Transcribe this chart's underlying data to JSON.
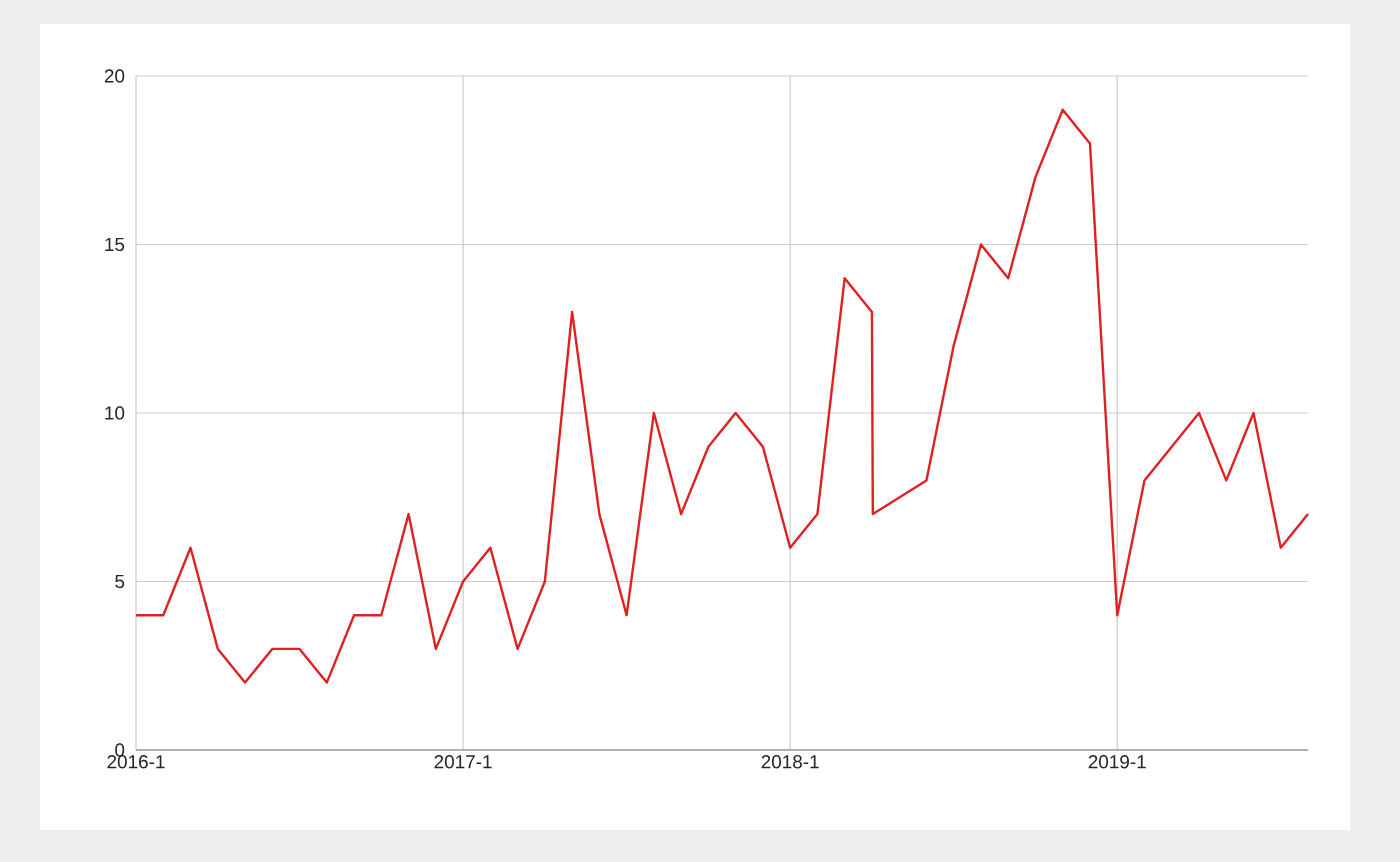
{
  "chart_data": {
    "type": "line",
    "color": "#dd2222",
    "grid": true,
    "marker": "none",
    "line_style": "solid",
    "x": [
      "2016-01",
      "2016-02",
      "2016-03",
      "2016-04",
      "2016-05",
      "2016-06",
      "2016-07",
      "2016-08",
      "2016-09",
      "2016-10",
      "2016-11",
      "2016-12",
      "2017-01",
      "2017-02",
      "2017-03",
      "2017-04",
      "2017-05",
      "2017-06",
      "2017-07",
      "2017-08",
      "2017-09",
      "2017-10",
      "2017-11",
      "2017-12",
      "2018-01",
      "2018-02",
      "2018-03",
      "2018-04-01",
      "2018-04-02",
      "2018-06",
      "2018-07",
      "2018-08",
      "2018-09",
      "2018-10",
      "2018-11",
      "2018-12",
      "2019-01",
      "2019-02",
      "2019-03",
      "2019-04",
      "2019-05",
      "2019-06",
      "2019-07",
      "2019-08"
    ],
    "values": [
      4,
      4,
      6,
      3,
      2,
      3,
      3,
      2,
      4,
      4,
      7,
      3,
      5,
      6,
      3,
      5,
      13,
      7,
      4,
      10,
      7,
      9,
      10,
      9,
      6,
      7,
      14,
      13,
      7,
      8,
      12,
      15,
      14,
      17,
      19,
      18,
      4,
      8,
      9,
      10,
      8,
      10,
      6,
      7
    ],
    "xlim": [
      "2016-01",
      "2019-08"
    ],
    "xticks": [
      {
        "value": "2016-01",
        "label": "2016-1"
      },
      {
        "value": "2017-01",
        "label": "2017-1"
      },
      {
        "value": "2018-01",
        "label": "2018-1"
      },
      {
        "value": "2019-01",
        "label": "2019-1"
      }
    ],
    "ylim": [
      0,
      20
    ],
    "yticks": [
      0,
      5,
      10,
      15,
      20
    ]
  }
}
